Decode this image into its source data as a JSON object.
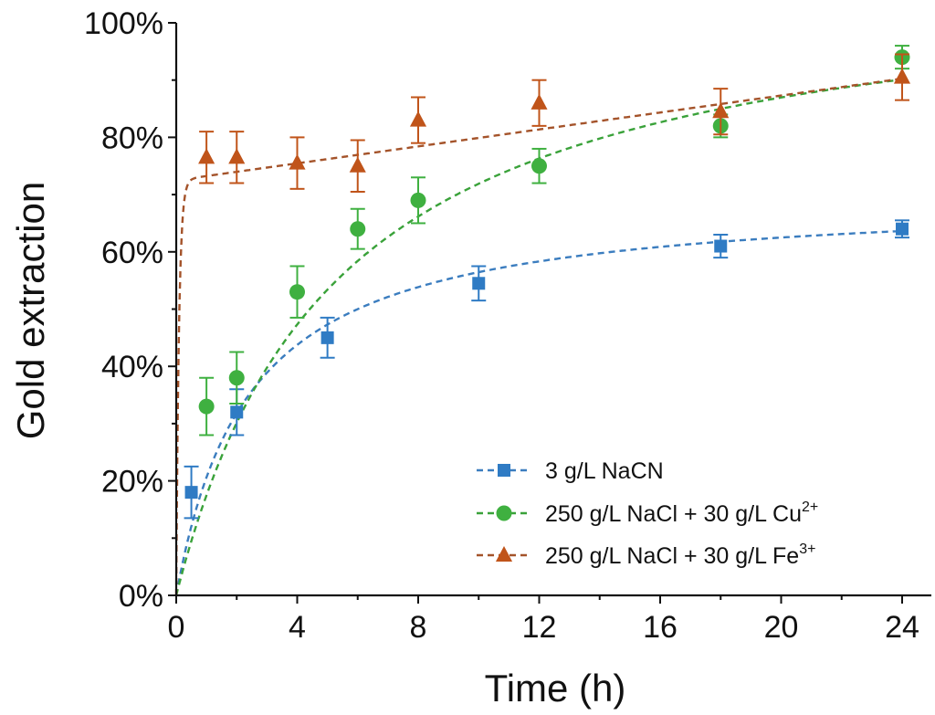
{
  "chart_data": {
    "type": "line",
    "title": "",
    "xlabel": "Time (h)",
    "ylabel": "Gold extraction",
    "xlim": [
      0,
      25
    ],
    "ylim": [
      0,
      100
    ],
    "x_ticks": [
      0,
      4,
      8,
      12,
      16,
      20,
      24
    ],
    "x_tick_labels": [
      "0",
      "4",
      "8",
      "12",
      "16",
      "20",
      "24"
    ],
    "y_ticks": [
      0,
      20,
      40,
      60,
      80,
      100
    ],
    "y_tick_labels": [
      "0%",
      "20%",
      "40%",
      "60%",
      "80%",
      "100%"
    ],
    "grid": false,
    "legend_position": "bottom-right",
    "series": [
      {
        "name": "3 g/L NaCN",
        "name_main": "3 g/L NaCN",
        "name_sup": "",
        "marker": "square",
        "color": "#2f7bc4",
        "fit_color": "#3b7dbf",
        "x": [
          0.5,
          2,
          5,
          10,
          18,
          24
        ],
        "y": [
          18,
          32,
          45,
          54.5,
          61,
          64
        ],
        "err": [
          4.5,
          4,
          3.5,
          3,
          2,
          1.5
        ],
        "fit": {
          "model": "hyperbolic",
          "ymax": 70,
          "k": 2.4
        }
      },
      {
        "name": "250 g/L NaCl + 30 g/L Cu2+",
        "name_main": "250 g/L NaCl + 30 g/L Cu",
        "name_sup": "2+",
        "marker": "circle",
        "color": "#3fb040",
        "fit_color": "#3aa23a",
        "x": [
          1,
          2,
          4,
          6,
          8,
          12,
          18,
          24
        ],
        "y": [
          33,
          38,
          53,
          64,
          69,
          75,
          82,
          94
        ],
        "err": [
          5,
          4.5,
          4.5,
          3.5,
          4,
          3,
          2,
          2
        ],
        "fit": {
          "model": "hyperbolic",
          "ymax": 110,
          "k": 5.3
        }
      },
      {
        "name": "250 g/L NaCl + 30 g/L Fe3+",
        "name_main": "250 g/L NaCl + 30 g/L Fe",
        "name_sup": "3+",
        "marker": "triangle",
        "color": "#c0541a",
        "fit_color": "#a4532a",
        "x": [
          1,
          2,
          4,
          6,
          8,
          12,
          18,
          24
        ],
        "y": [
          76.5,
          76.5,
          75.5,
          75,
          83,
          86,
          84.5,
          90.5
        ],
        "err": [
          4.5,
          4.5,
          4.5,
          4.5,
          4,
          4,
          4,
          4
        ],
        "fit": {
          "model": "fast-then-linear",
          "plateau": 72.5,
          "slope": 0.74
        }
      }
    ]
  }
}
